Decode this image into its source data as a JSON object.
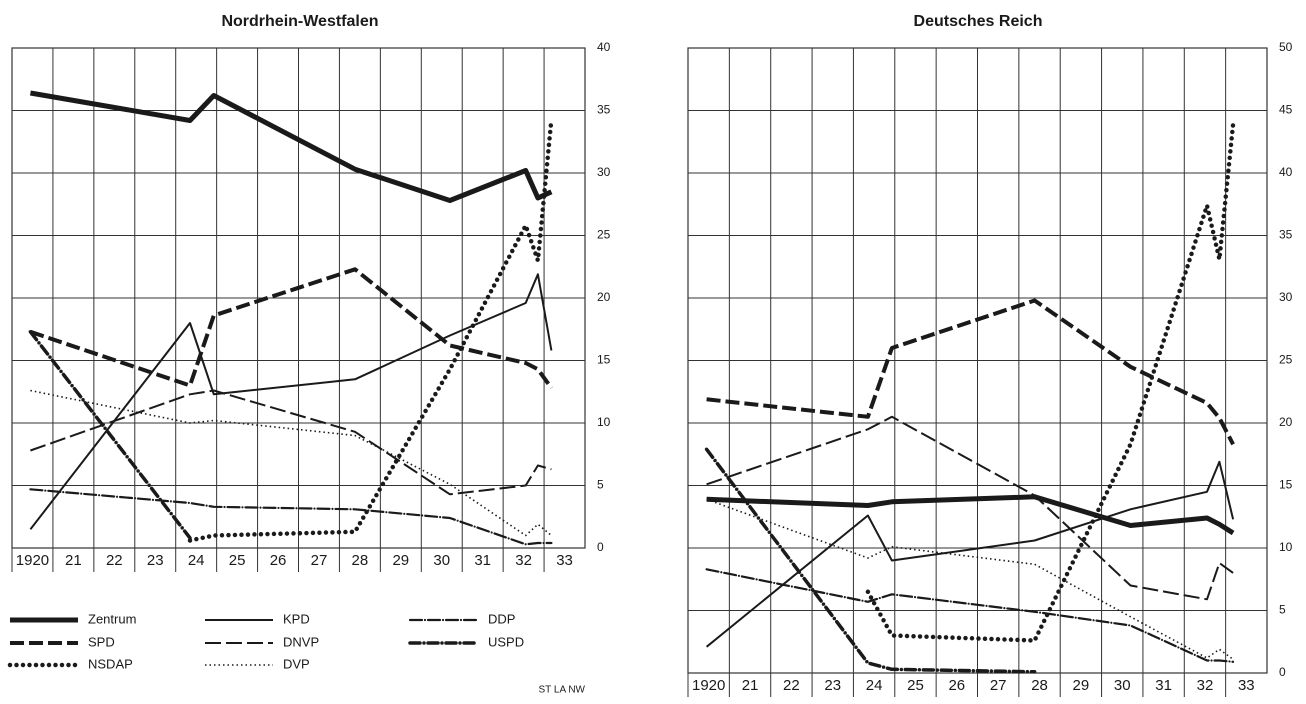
{
  "legend": [
    {
      "name": "Zentrum",
      "style": "thick-solid"
    },
    {
      "name": "KPD",
      "style": "solid"
    },
    {
      "name": "DDP",
      "style": "dash-dot"
    },
    {
      "name": "SPD",
      "style": "thick-dash"
    },
    {
      "name": "DNVP",
      "style": "dash"
    },
    {
      "name": "USPD",
      "style": "thick-dash-dot"
    },
    {
      "name": "NSDAP",
      "style": "thick-dot"
    },
    {
      "name": "DVP",
      "style": "dot"
    }
  ],
  "credit": "ST LA NW",
  "chart_data": [
    {
      "type": "line",
      "title": "Nordrhein-Westfalen",
      "color": "#1a1a1a",
      "x": [
        1920.45,
        1924.35,
        1924.93,
        1928.38,
        1930.7,
        1932.55,
        1932.85,
        1933.18
      ],
      "xlim": [
        1920,
        1934
      ],
      "xticks": [
        {
          "value": 1920,
          "label": "1920"
        },
        {
          "value": 1921,
          "label": "21"
        },
        {
          "value": 1922,
          "label": "22"
        },
        {
          "value": 1923,
          "label": "23"
        },
        {
          "value": 1924,
          "label": "24"
        },
        {
          "value": 1925,
          "label": "25"
        },
        {
          "value": 1926,
          "label": "26"
        },
        {
          "value": 1927,
          "label": "27"
        },
        {
          "value": 1928,
          "label": "28"
        },
        {
          "value": 1929,
          "label": "29"
        },
        {
          "value": 1930,
          "label": "30"
        },
        {
          "value": 1931,
          "label": "31"
        },
        {
          "value": 1932,
          "label": "32"
        },
        {
          "value": 1933,
          "label": "33"
        }
      ],
      "ylim": [
        0,
        40
      ],
      "yticks": [
        0,
        5,
        10,
        15,
        20,
        25,
        30,
        35,
        40
      ],
      "grid": true,
      "series": [
        {
          "values": [
            36.4,
            34.2,
            36.2,
            30.3,
            27.8,
            30.2,
            28.0,
            28.5
          ]
        },
        {
          "values": [
            1.5,
            18.0,
            12.3,
            13.5,
            17.0,
            19.6,
            21.9,
            15.8
          ]
        },
        {
          "values": [
            4.7,
            3.6,
            3.3,
            3.1,
            2.4,
            0.3,
            0.4,
            0.4
          ]
        },
        {
          "values": [
            17.3,
            13.0,
            18.6,
            22.3,
            16.2,
            14.8,
            14.3,
            12.8
          ]
        },
        {
          "values": [
            7.8,
            12.3,
            12.6,
            9.3,
            4.3,
            5.0,
            6.6,
            6.3
          ]
        },
        {
          "values": [
            17.3,
            0.8,
            null,
            null,
            null,
            null,
            null,
            null
          ]
        },
        {
          "values": [
            null,
            0.6,
            1.0,
            1.3,
            14.3,
            25.8,
            23.0,
            34.3
          ]
        },
        {
          "values": [
            12.6,
            10.0,
            10.2,
            9.0,
            5.1,
            1.0,
            1.9,
            1.0
          ]
        }
      ]
    },
    {
      "type": "line",
      "title": "Deutsches Reich",
      "color": "#1a1a1a",
      "x": [
        1920.45,
        1924.35,
        1924.93,
        1928.38,
        1930.7,
        1932.55,
        1932.85,
        1933.18
      ],
      "xlim": [
        1920,
        1934
      ],
      "xticks": [
        {
          "value": 1920,
          "label": "1920"
        },
        {
          "value": 1921,
          "label": "21"
        },
        {
          "value": 1922,
          "label": "22"
        },
        {
          "value": 1923,
          "label": "23"
        },
        {
          "value": 1924,
          "label": "24"
        },
        {
          "value": 1925,
          "label": "25"
        },
        {
          "value": 1926,
          "label": "26"
        },
        {
          "value": 1927,
          "label": "27"
        },
        {
          "value": 1928,
          "label": "28"
        },
        {
          "value": 1929,
          "label": "29"
        },
        {
          "value": 1930,
          "label": "30"
        },
        {
          "value": 1931,
          "label": "31"
        },
        {
          "value": 1932,
          "label": "32"
        },
        {
          "value": 1933,
          "label": "33"
        }
      ],
      "ylim": [
        0,
        50
      ],
      "yticks": [
        0,
        5,
        10,
        15,
        20,
        25,
        30,
        35,
        40,
        45,
        50
      ],
      "grid": true,
      "series": [
        {
          "values": [
            13.9,
            13.4,
            13.7,
            14.1,
            11.8,
            12.4,
            11.9,
            11.2
          ]
        },
        {
          "values": [
            2.1,
            12.6,
            9.0,
            10.6,
            13.1,
            14.5,
            16.9,
            12.3
          ]
        },
        {
          "values": [
            8.3,
            5.7,
            6.3,
            4.9,
            3.8,
            1.0,
            1.0,
            0.9
          ]
        },
        {
          "values": [
            21.9,
            20.5,
            26.0,
            29.8,
            24.5,
            21.6,
            20.4,
            18.3
          ]
        },
        {
          "values": [
            15.1,
            19.5,
            20.5,
            14.2,
            7.0,
            5.9,
            8.8,
            8.0
          ]
        },
        {
          "values": [
            17.9,
            0.8,
            0.3,
            0.1,
            null,
            null,
            null,
            null
          ]
        },
        {
          "values": [
            null,
            6.5,
            3.0,
            2.6,
            18.3,
            37.4,
            33.1,
            43.9
          ]
        },
        {
          "values": [
            13.9,
            9.2,
            10.1,
            8.7,
            4.5,
            1.2,
            1.9,
            1.1
          ]
        }
      ]
    }
  ]
}
